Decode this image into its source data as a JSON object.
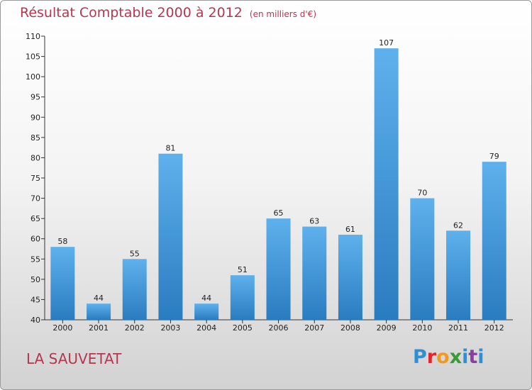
{
  "header": {
    "title": "Résultat Comptable 2000 à 2012",
    "subtitle": "(en milliers d'€)"
  },
  "footer": {
    "commune": "LA SAUVETAT",
    "logo_text": "Proxiti",
    "logo_colors": [
      "#2e8fd6",
      "#e2262a",
      "#f39a1e",
      "#3a9a36",
      "#2e8fd6",
      "#8a3ea0",
      "#2e8fd6"
    ]
  },
  "chart_data": {
    "type": "bar",
    "title": "Résultat Comptable 2000 à 2012",
    "subtitle": "(en milliers d'€)",
    "xlabel": "",
    "ylabel": "",
    "categories": [
      "2000",
      "2001",
      "2002",
      "2003",
      "2004",
      "2005",
      "2006",
      "2007",
      "2008",
      "2009",
      "2010",
      "2011",
      "2012"
    ],
    "values": [
      58,
      44,
      55,
      81,
      44,
      51,
      65,
      63,
      61,
      107,
      70,
      62,
      79
    ],
    "ylim": [
      40,
      110
    ],
    "yticks": [
      40,
      45,
      50,
      55,
      60,
      65,
      70,
      75,
      80,
      85,
      90,
      95,
      100,
      105,
      110
    ],
    "bar_color": "#3a8fd6",
    "grid": false,
    "legend": "none"
  }
}
